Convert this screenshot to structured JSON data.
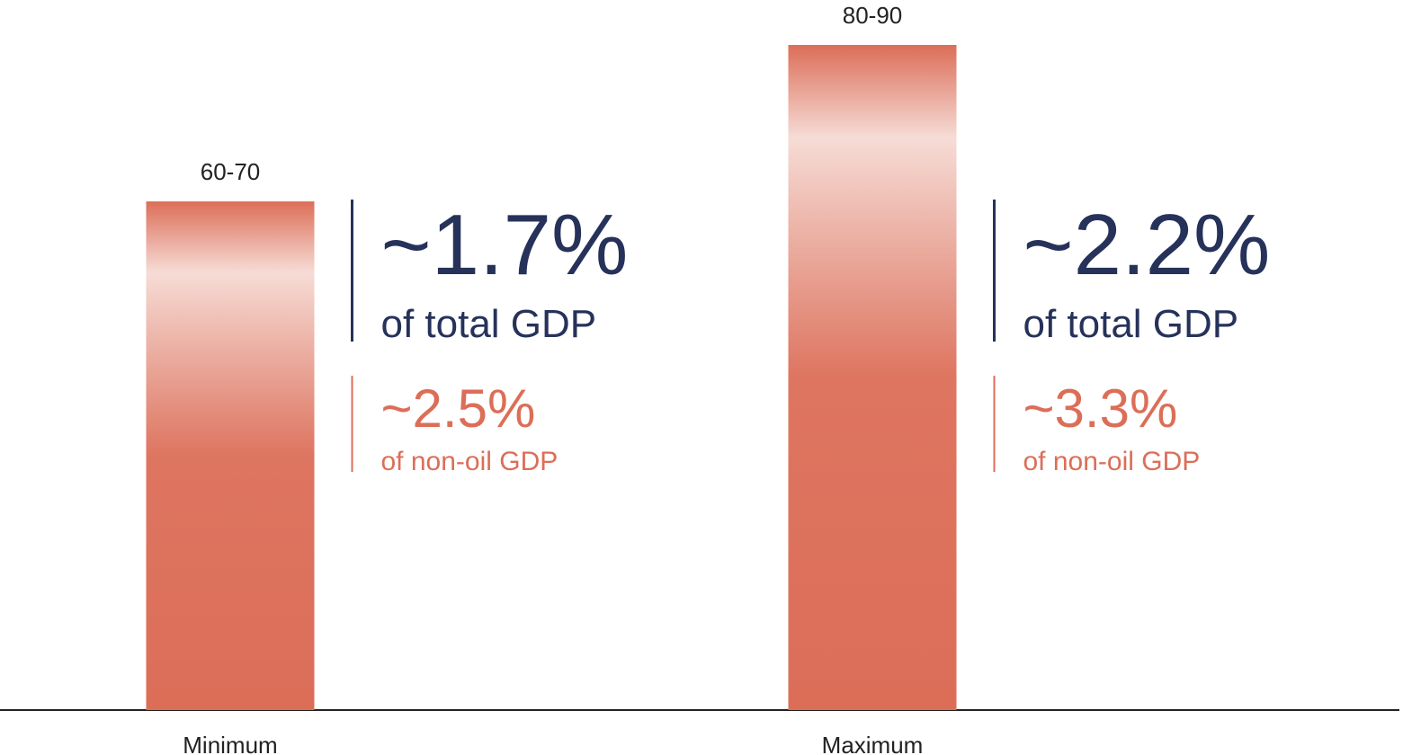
{
  "chart_data": {
    "type": "bar",
    "categories": [
      "Minimum",
      "Maximum"
    ],
    "values": [
      65,
      85
    ],
    "value_labels": [
      "60-70",
      "80-90"
    ],
    "color": "#dc6e58",
    "annotations": [
      {
        "main": "~1.7%",
        "main_label": "of total GDP",
        "sub": "~2.5%",
        "sub_label": "of non-oil GDP"
      },
      {
        "main": "~2.2%",
        "main_label": "of total GDP",
        "sub": "~3.3%",
        "sub_label": "of non-oil GDP"
      }
    ]
  }
}
